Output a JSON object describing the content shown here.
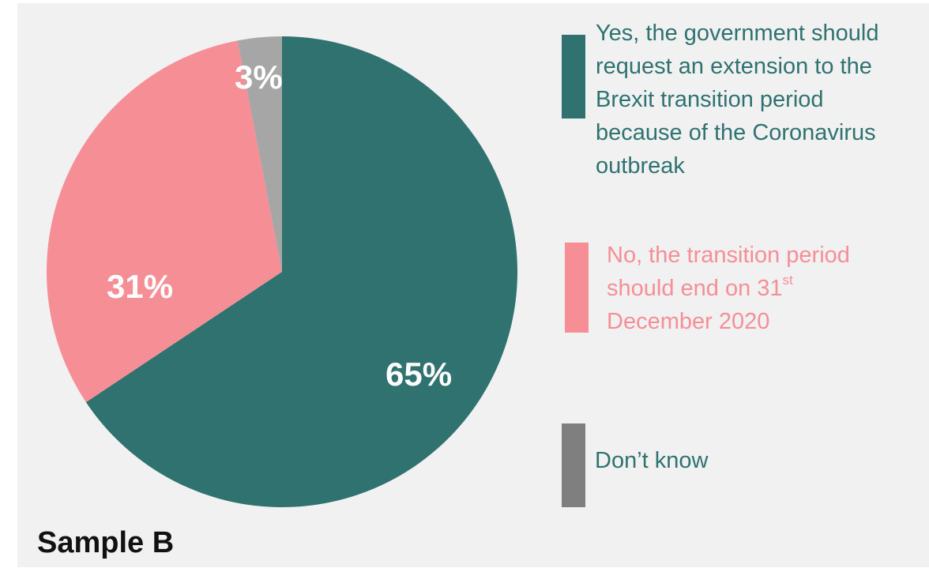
{
  "chart_data": {
    "type": "pie",
    "slices": [
      {
        "label": "Yes, the government should request an extension to the Brexit transition period because of the Coronavirus outbreak",
        "value": 65,
        "value_label": "65%",
        "color": "#2f7270"
      },
      {
        "label": "No, the transition period should end on 31st December 2020",
        "value": 31,
        "value_label": "31%",
        "color": "#f68e96"
      },
      {
        "label": "Don’t know",
        "value": 3,
        "value_label": "3%",
        "color": "#a6a6a6"
      }
    ],
    "legend_placement": "right"
  },
  "legend": {
    "yes_lines": [
      "Yes, the government should",
      "request an extension to the",
      "Brexit transition period",
      "because of the Coronavirus",
      "outbreak"
    ],
    "yes_text_color": "#2f7270",
    "yes_swatch_color": "#2f7270",
    "no_line1": "No, the transition period",
    "no_line2_pre": "should end on 31",
    "no_line2_sup": "st",
    "no_line3": "December 2020",
    "no_text_color": "#f68e96",
    "no_swatch_color": "#f68e96",
    "dk_label": "Don’t know",
    "dk_text_color": "#2f7270",
    "dk_swatch_color": "#7f7f7f"
  },
  "sample_title": "Sample B",
  "colors": {
    "background": "#f1f1f1"
  }
}
